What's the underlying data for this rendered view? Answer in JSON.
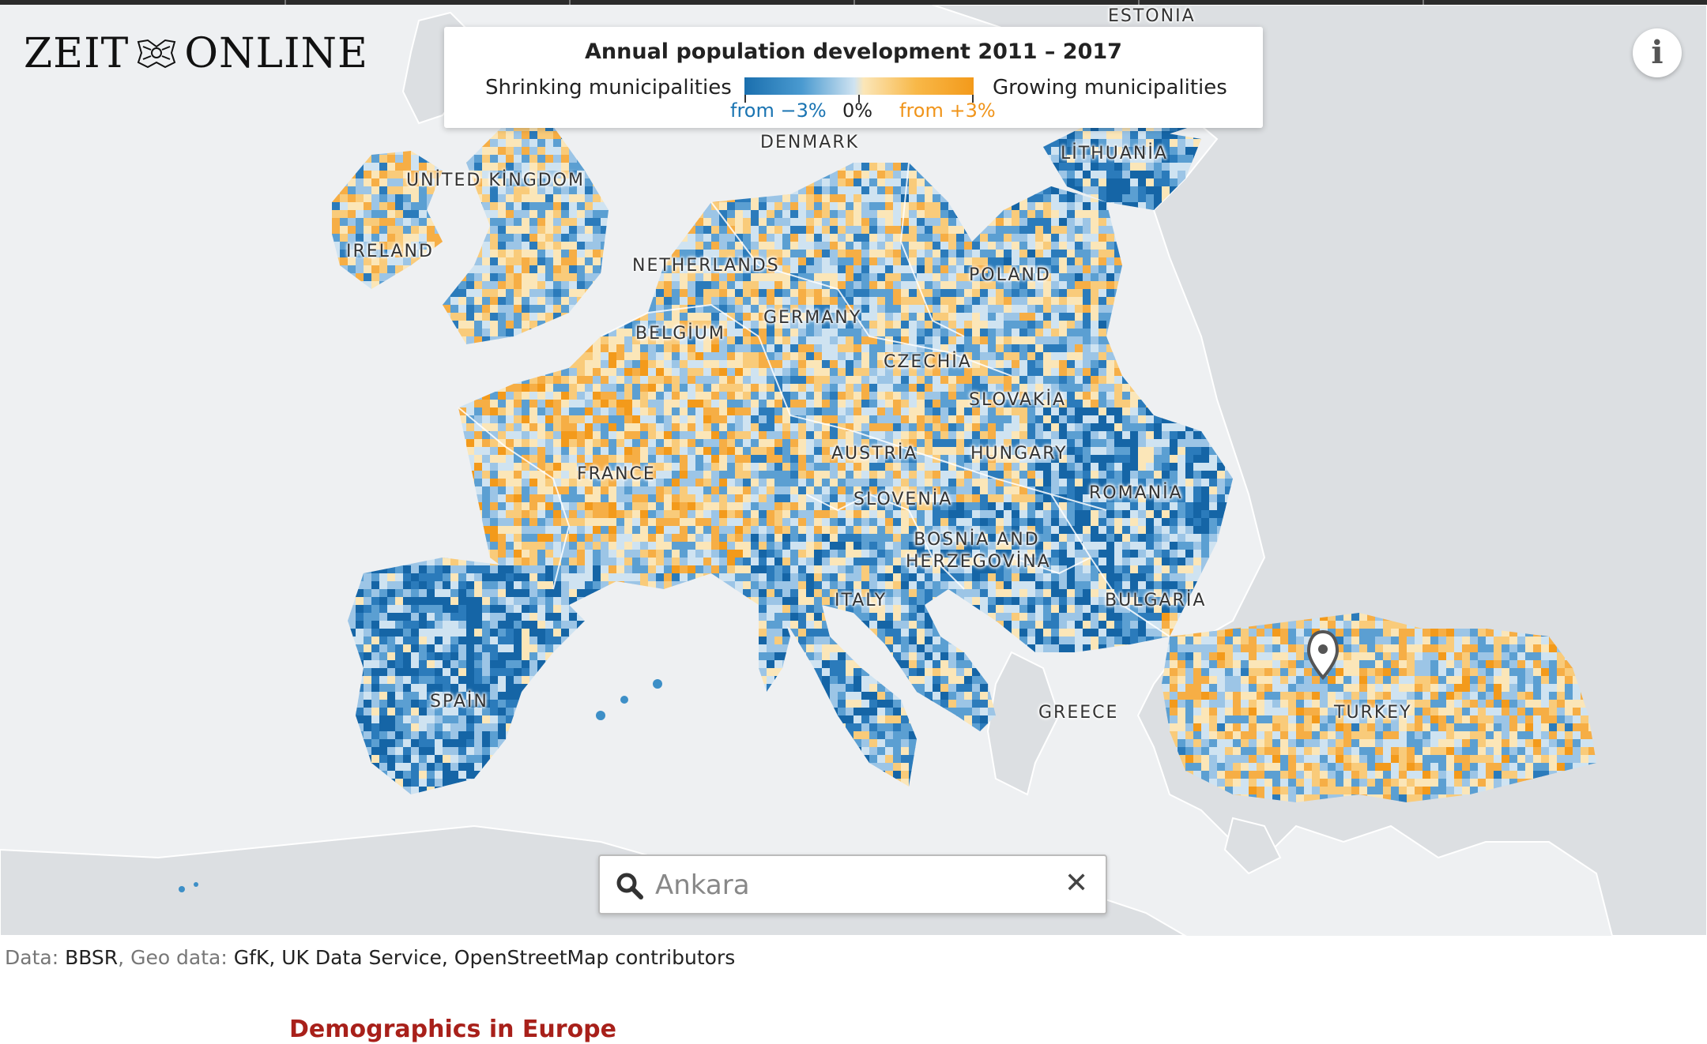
{
  "brand": {
    "logo_text_left": "ZEIT",
    "logo_text_right": "ONLINE"
  },
  "legend": {
    "title": "Annual population development 2011 – 2017",
    "left_label": "Shrinking municipalities",
    "right_label": "Growing municipalities",
    "tick_left": "from −3%",
    "tick_mid": "0%",
    "tick_right": "from +3%",
    "colors": {
      "shrink": "#1a6fae",
      "neutral_blue": "#cfe3f1",
      "neutral_orange": "#fbe6b8",
      "grow": "#f39a1b"
    },
    "tick_left_color": "#1a74b2",
    "tick_right_color": "#f0941a"
  },
  "map": {
    "countries": [
      "ESTONIA",
      "DENMARK",
      "LİTHUANİA",
      "UNİTED KİNGDOM",
      "IRELAND",
      "NETHERLANDS",
      "POLAND",
      "GERMANY",
      "BELGİUM",
      "CZECHİA",
      "SLOVAKİA",
      "AUSTRİA",
      "HUNGARY",
      "FRANCE",
      "SLOVENİA",
      "ROMANİA",
      "BOSNİA AND HERZEGOVİNA",
      "ITALY",
      "BULGARİA",
      "SPAİN",
      "GREECE",
      "TURKEY"
    ],
    "marker_icon": "map-pin-icon"
  },
  "info_button": {
    "label": "i",
    "icon": "info-icon"
  },
  "search": {
    "value": "Ankara",
    "placeholder": "Ankara",
    "icon": "search-icon",
    "clear_icon": "close-icon"
  },
  "credits": {
    "data_label": "Data: ",
    "data_value": "BBSR",
    "geo_label": ", Geo data: ",
    "geo_value": "GfK, UK Data Service, OpenStreetMap contributors"
  },
  "section": {
    "title": "Demographics in Europe"
  }
}
